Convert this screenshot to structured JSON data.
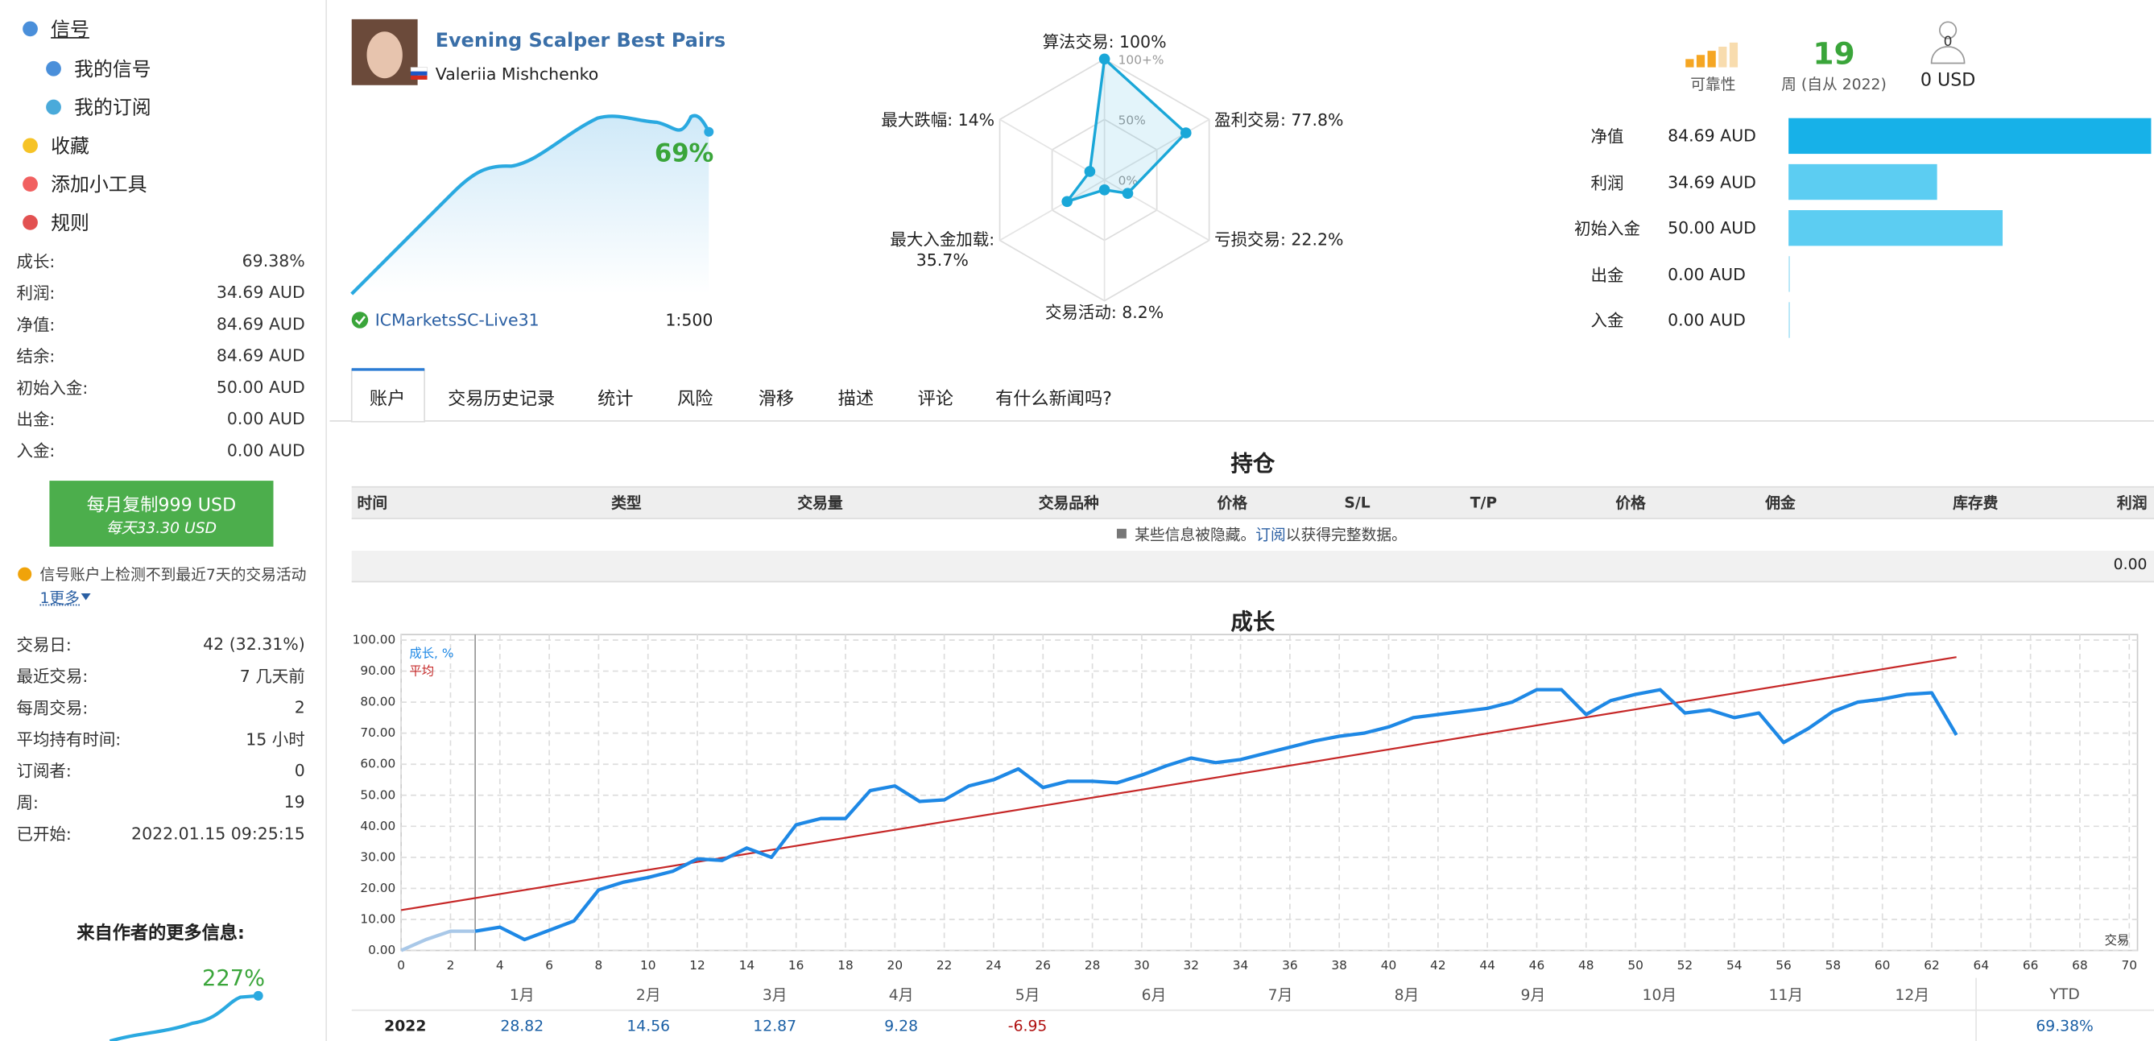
{
  "sidebar": {
    "nav": [
      "信号",
      "我的信号",
      "我的订阅",
      "收藏",
      "添加小工具",
      "规则"
    ],
    "stats": [
      [
        "成长:",
        "69.38%"
      ],
      [
        "利润:",
        "34.69 AUD"
      ],
      [
        "净值:",
        "84.69 AUD"
      ],
      [
        "结余:",
        "84.69 AUD"
      ],
      [
        "初始入金:",
        "50.00 AUD"
      ],
      [
        "出金:",
        "0.00 AUD"
      ],
      [
        "入金:",
        "0.00 AUD"
      ]
    ],
    "button": {
      "price": "每月复制999 USD",
      "daily": "每天33.30 USD"
    },
    "warning": "信号账户上检测不到最近7天的交易活动",
    "more": "1更多",
    "stats2": [
      [
        "交易日:",
        "42 (32.31%)"
      ],
      [
        "最近交易:",
        "7 几天前"
      ],
      [
        "每周交易:",
        "2"
      ],
      [
        "平均持有时间:",
        "15 小时"
      ],
      [
        "订阅者:",
        "0"
      ],
      [
        "周:",
        "19"
      ],
      [
        "已开始:",
        "2022.01.15 09:25:15"
      ]
    ],
    "author_title": "来自作者的更多信息:",
    "author_growth": "227%"
  },
  "signal": {
    "title": "Evening Scalper Best Pairs",
    "author": "Valeriia Mishchenko",
    "growth": "69%",
    "broker": "ICMarketsSC-Live31",
    "leverage": "1:500"
  },
  "summary": {
    "reliability": "可靠性",
    "weeks": "19",
    "weeks_label": "周 (自从 2022)",
    "subscribers_count": "0",
    "subscribers_funds": "0 USD"
  },
  "tabs": [
    "账户",
    "交易历史记录",
    "统计",
    "风险",
    "滑移",
    "描述",
    "评论",
    "有什么新闻吗?"
  ],
  "positions": {
    "title": "持仓",
    "headers": [
      "时间",
      "类型",
      "交易量",
      "交易品种",
      "价格",
      "S/L",
      "T/P",
      "价格",
      "佣金",
      "库存费",
      "利润"
    ],
    "notice": [
      "某些信息被隐藏。",
      "订阅",
      "以获得完整数据。"
    ],
    "total": "0.00"
  },
  "chart_data": [
    {
      "type": "radar",
      "categories": [
        "算法交易: 100%",
        "盈利交易: 77.8%",
        "亏损交易: 22.2%",
        "交易活动: 8.2%",
        "最大入金加载:\n35.7%",
        "最大跌幅: 14%"
      ],
      "values": [
        100,
        77.8,
        22.2,
        8.2,
        35.7,
        14
      ],
      "rlim": [
        0,
        100
      ],
      "rticks": [
        {
          "value": 100,
          "label": "100+%"
        },
        {
          "value": 50,
          "label": "50%"
        },
        {
          "value": 0,
          "label": "0%"
        }
      ],
      "color": "#1aa7d8"
    },
    {
      "type": "hbar",
      "categories": [
        "净值",
        "利润",
        "初始入金",
        "出金",
        "入金"
      ],
      "values": [
        84.69,
        34.69,
        50,
        0,
        0
      ],
      "value_labels": [
        "84.69 AUD",
        "34.69 AUD",
        "50.00 AUD",
        "0.00 AUD",
        "0.00 AUD"
      ],
      "xlim": [
        0,
        86
      ],
      "colors": [
        "#17b1e8",
        "#5ccdf2",
        "#5ccdf2",
        "#5ccdf2",
        "#5ccdf2"
      ]
    },
    {
      "type": "line",
      "title": "成长",
      "x_label": "交易",
      "xlim": [
        0,
        70
      ],
      "xticks": [
        0,
        2,
        4,
        6,
        8,
        10,
        12,
        14,
        16,
        18,
        20,
        22,
        24,
        26,
        28,
        30,
        32,
        34,
        36,
        38,
        40,
        42,
        44,
        46,
        48,
        50,
        52,
        54,
        56,
        58,
        60,
        62,
        64,
        66,
        68,
        70
      ],
      "ylim": [
        0,
        100
      ],
      "yticks": [
        {
          "value": 0,
          "label": "0.00"
        },
        {
          "value": 10,
          "label": "10.00"
        },
        {
          "value": 20,
          "label": "20.00"
        },
        {
          "value": 30,
          "label": "30.00"
        },
        {
          "value": 40,
          "label": "40.00"
        },
        {
          "value": 50,
          "label": "50.00"
        },
        {
          "value": 60,
          "label": "60.00"
        },
        {
          "value": 70,
          "label": "70.00"
        },
        {
          "value": 80,
          "label": "80.00"
        },
        {
          "value": 90,
          "label": "90.00"
        },
        {
          "value": 100,
          "label": "100.00"
        }
      ],
      "grid": true,
      "legend": "top-left",
      "marker_x": 3,
      "series": [
        {
          "name": "成长, %",
          "color": "#1e88e5",
          "x": [
            3,
            4,
            5,
            6,
            7,
            8,
            9,
            10,
            11,
            12,
            13,
            14,
            15,
            16,
            17,
            18,
            19,
            20,
            21,
            22,
            23,
            24,
            25,
            26,
            27,
            28,
            29,
            30,
            31,
            32,
            33,
            34,
            35,
            36,
            37,
            38,
            39,
            40,
            41,
            42,
            43,
            44,
            45,
            46,
            47,
            48,
            49,
            50,
            51,
            52,
            53,
            54,
            55,
            56,
            57,
            58,
            59,
            60,
            61,
            62,
            63
          ],
          "values": [
            6.2,
            7.5,
            3.5,
            6.5,
            9.5,
            19.5,
            22,
            23.5,
            25.5,
            29.5,
            29,
            33,
            30,
            40.5,
            42.5,
            42.5,
            51.5,
            53,
            48,
            48.5,
            53,
            55,
            58.5,
            52.5,
            54.5,
            54.5,
            54,
            56.5,
            59.5,
            62,
            60.5,
            61.5,
            63.5,
            65.5,
            67.5,
            69,
            70,
            72,
            75,
            76,
            77,
            78,
            80,
            84,
            84,
            76,
            80.5,
            82.5,
            84,
            76.5,
            77.5,
            75,
            76.5,
            67,
            71.5,
            77,
            80,
            81,
            82.5,
            83,
            69.4
          ]
        },
        {
          "name": "平均",
          "color": "#c62828",
          "x": [
            0,
            63
          ],
          "values": [
            13,
            94.5
          ]
        },
        {
          "color": "#a9c8e8",
          "x": [
            0,
            1,
            2,
            3
          ],
          "values": [
            0,
            3.5,
            6.2,
            6.2
          ]
        }
      ]
    }
  ],
  "yearly": {
    "months": [
      "1月",
      "2月",
      "3月",
      "4月",
      "5月",
      "6月",
      "7月",
      "8月",
      "9月",
      "10月",
      "11月",
      "12月"
    ],
    "ytd": "YTD",
    "rows": [
      {
        "year": "2022",
        "values": [
          "28.82",
          "14.56",
          "12.87",
          "9.28",
          "-6.95",
          null,
          null,
          null,
          null,
          null,
          null,
          null
        ],
        "ytd": "69.38%"
      }
    ]
  }
}
